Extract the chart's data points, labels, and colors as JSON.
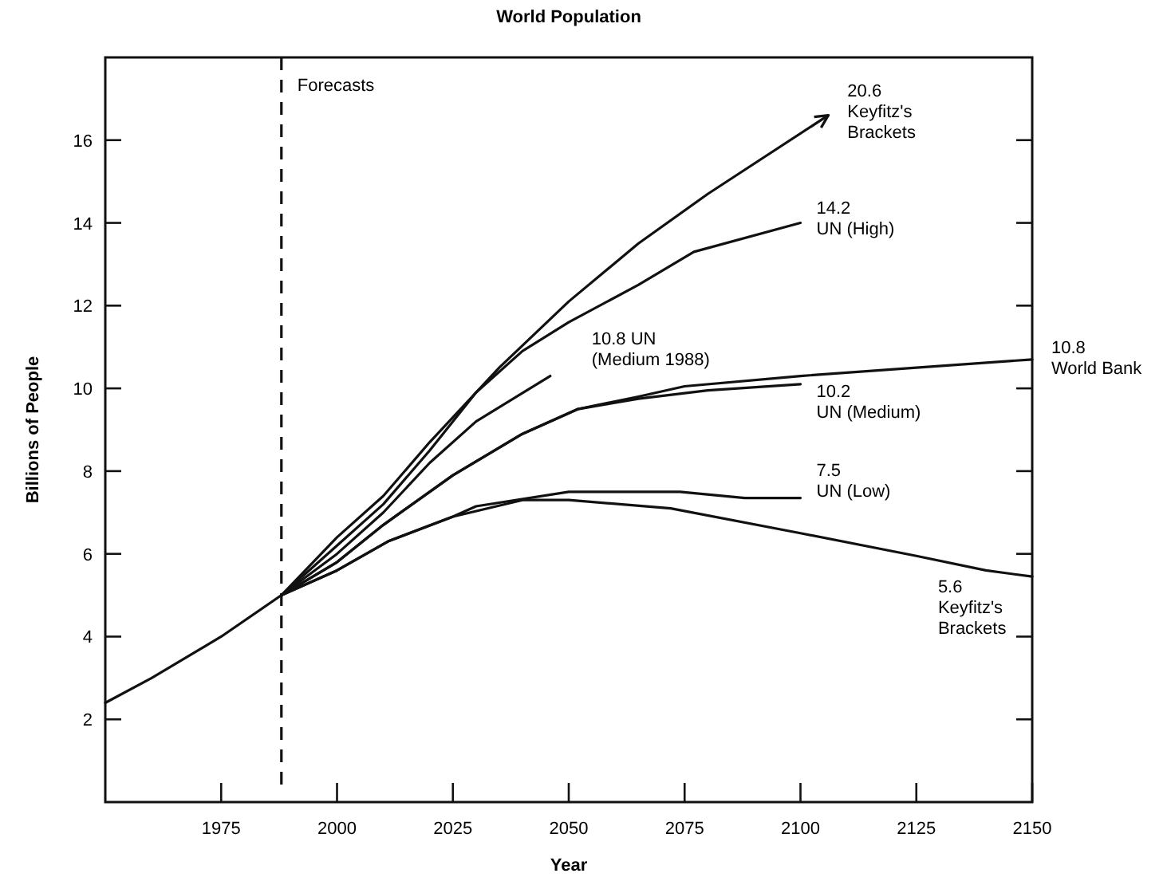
{
  "chart_data": {
    "type": "line",
    "title": "World Population",
    "xlabel": "Year",
    "ylabel": "Billions of People",
    "xlim": [
      1950,
      2150
    ],
    "ylim": [
      0,
      18
    ],
    "xticks": [
      1975,
      2000,
      2025,
      2050,
      2075,
      2100,
      2125,
      2150
    ],
    "yticks": [
      2,
      4,
      6,
      8,
      10,
      12,
      14,
      16
    ],
    "grid": false,
    "line_style": "solid",
    "marker": "none",
    "series": [
      {
        "color": "#111111",
        "x": [
          1950,
          1960,
          1975,
          1988,
          2000,
          2010,
          2020,
          2035,
          2050,
          2065,
          2080,
          2106
        ],
        "values": [
          2.4,
          3.0,
          4.0,
          5.0,
          6.4,
          7.4,
          8.7,
          10.5,
          12.1,
          13.5,
          14.7,
          16.6
        ]
      },
      {
        "color": "#111111",
        "x": [
          1988,
          2000,
          2010,
          2020,
          2030,
          2040,
          2050,
          2065,
          2077,
          2100
        ],
        "values": [
          5.0,
          6.2,
          7.2,
          8.5,
          9.9,
          10.9,
          11.6,
          12.5,
          13.3,
          14.0
        ]
      },
      {
        "color": "#111111",
        "x": [
          1988,
          2000,
          2010,
          2020,
          2030,
          2046
        ],
        "values": [
          5.0,
          6.0,
          7.0,
          8.2,
          9.2,
          10.3
        ]
      },
      {
        "color": "#111111",
        "x": [
          1988,
          2000,
          2010,
          2025,
          2040,
          2052,
          2065,
          2075,
          2100,
          2125,
          2150
        ],
        "values": [
          5.0,
          5.8,
          6.7,
          7.9,
          8.9,
          9.5,
          9.8,
          10.05,
          10.3,
          10.5,
          10.7
        ]
      },
      {
        "color": "#111111",
        "x": [
          1988,
          2000,
          2010,
          2025,
          2040,
          2052,
          2065,
          2080,
          2100
        ],
        "values": [
          5.0,
          5.8,
          6.7,
          7.9,
          8.9,
          9.5,
          9.75,
          9.95,
          10.1
        ]
      },
      {
        "color": "#111111",
        "x": [
          1988,
          2000,
          2011,
          2025,
          2030,
          2050,
          2074,
          2088,
          2100
        ],
        "values": [
          5.0,
          5.6,
          6.3,
          6.9,
          7.15,
          7.5,
          7.5,
          7.35,
          7.35
        ]
      },
      {
        "color": "#111111",
        "x": [
          1988,
          2000,
          2011,
          2025,
          2040,
          2050,
          2072,
          2100,
          2125,
          2140,
          2150
        ],
        "values": [
          5.0,
          5.6,
          6.3,
          6.9,
          7.3,
          7.3,
          7.1,
          6.5,
          5.95,
          5.6,
          5.45
        ]
      }
    ],
    "ref_lines": [
      {
        "axis": "x",
        "value": 1988,
        "label": "Forecasts",
        "color": "#111111",
        "line_style": "dashed"
      }
    ],
    "annotations": [
      {
        "text": "20.6\nKeyfitz's\nBrackets",
        "x": 2106,
        "y": 16.6
      },
      {
        "text": "14.2\nUN (High)",
        "x": 2100,
        "y": 14.0
      },
      {
        "text": "10.8 UN\n(Medium 1988)",
        "x": 2046,
        "y": 10.3
      },
      {
        "text": "10.8\nWorld Bank",
        "x": 2150,
        "y": 10.7
      },
      {
        "text": "10.2\nUN (Medium)",
        "x": 2100,
        "y": 10.1
      },
      {
        "text": "7.5\nUN (Low)",
        "x": 2100,
        "y": 7.35
      },
      {
        "text": "5.6\nKeyfitz's\nBrackets",
        "x": 2140,
        "y": 5.6
      }
    ]
  }
}
